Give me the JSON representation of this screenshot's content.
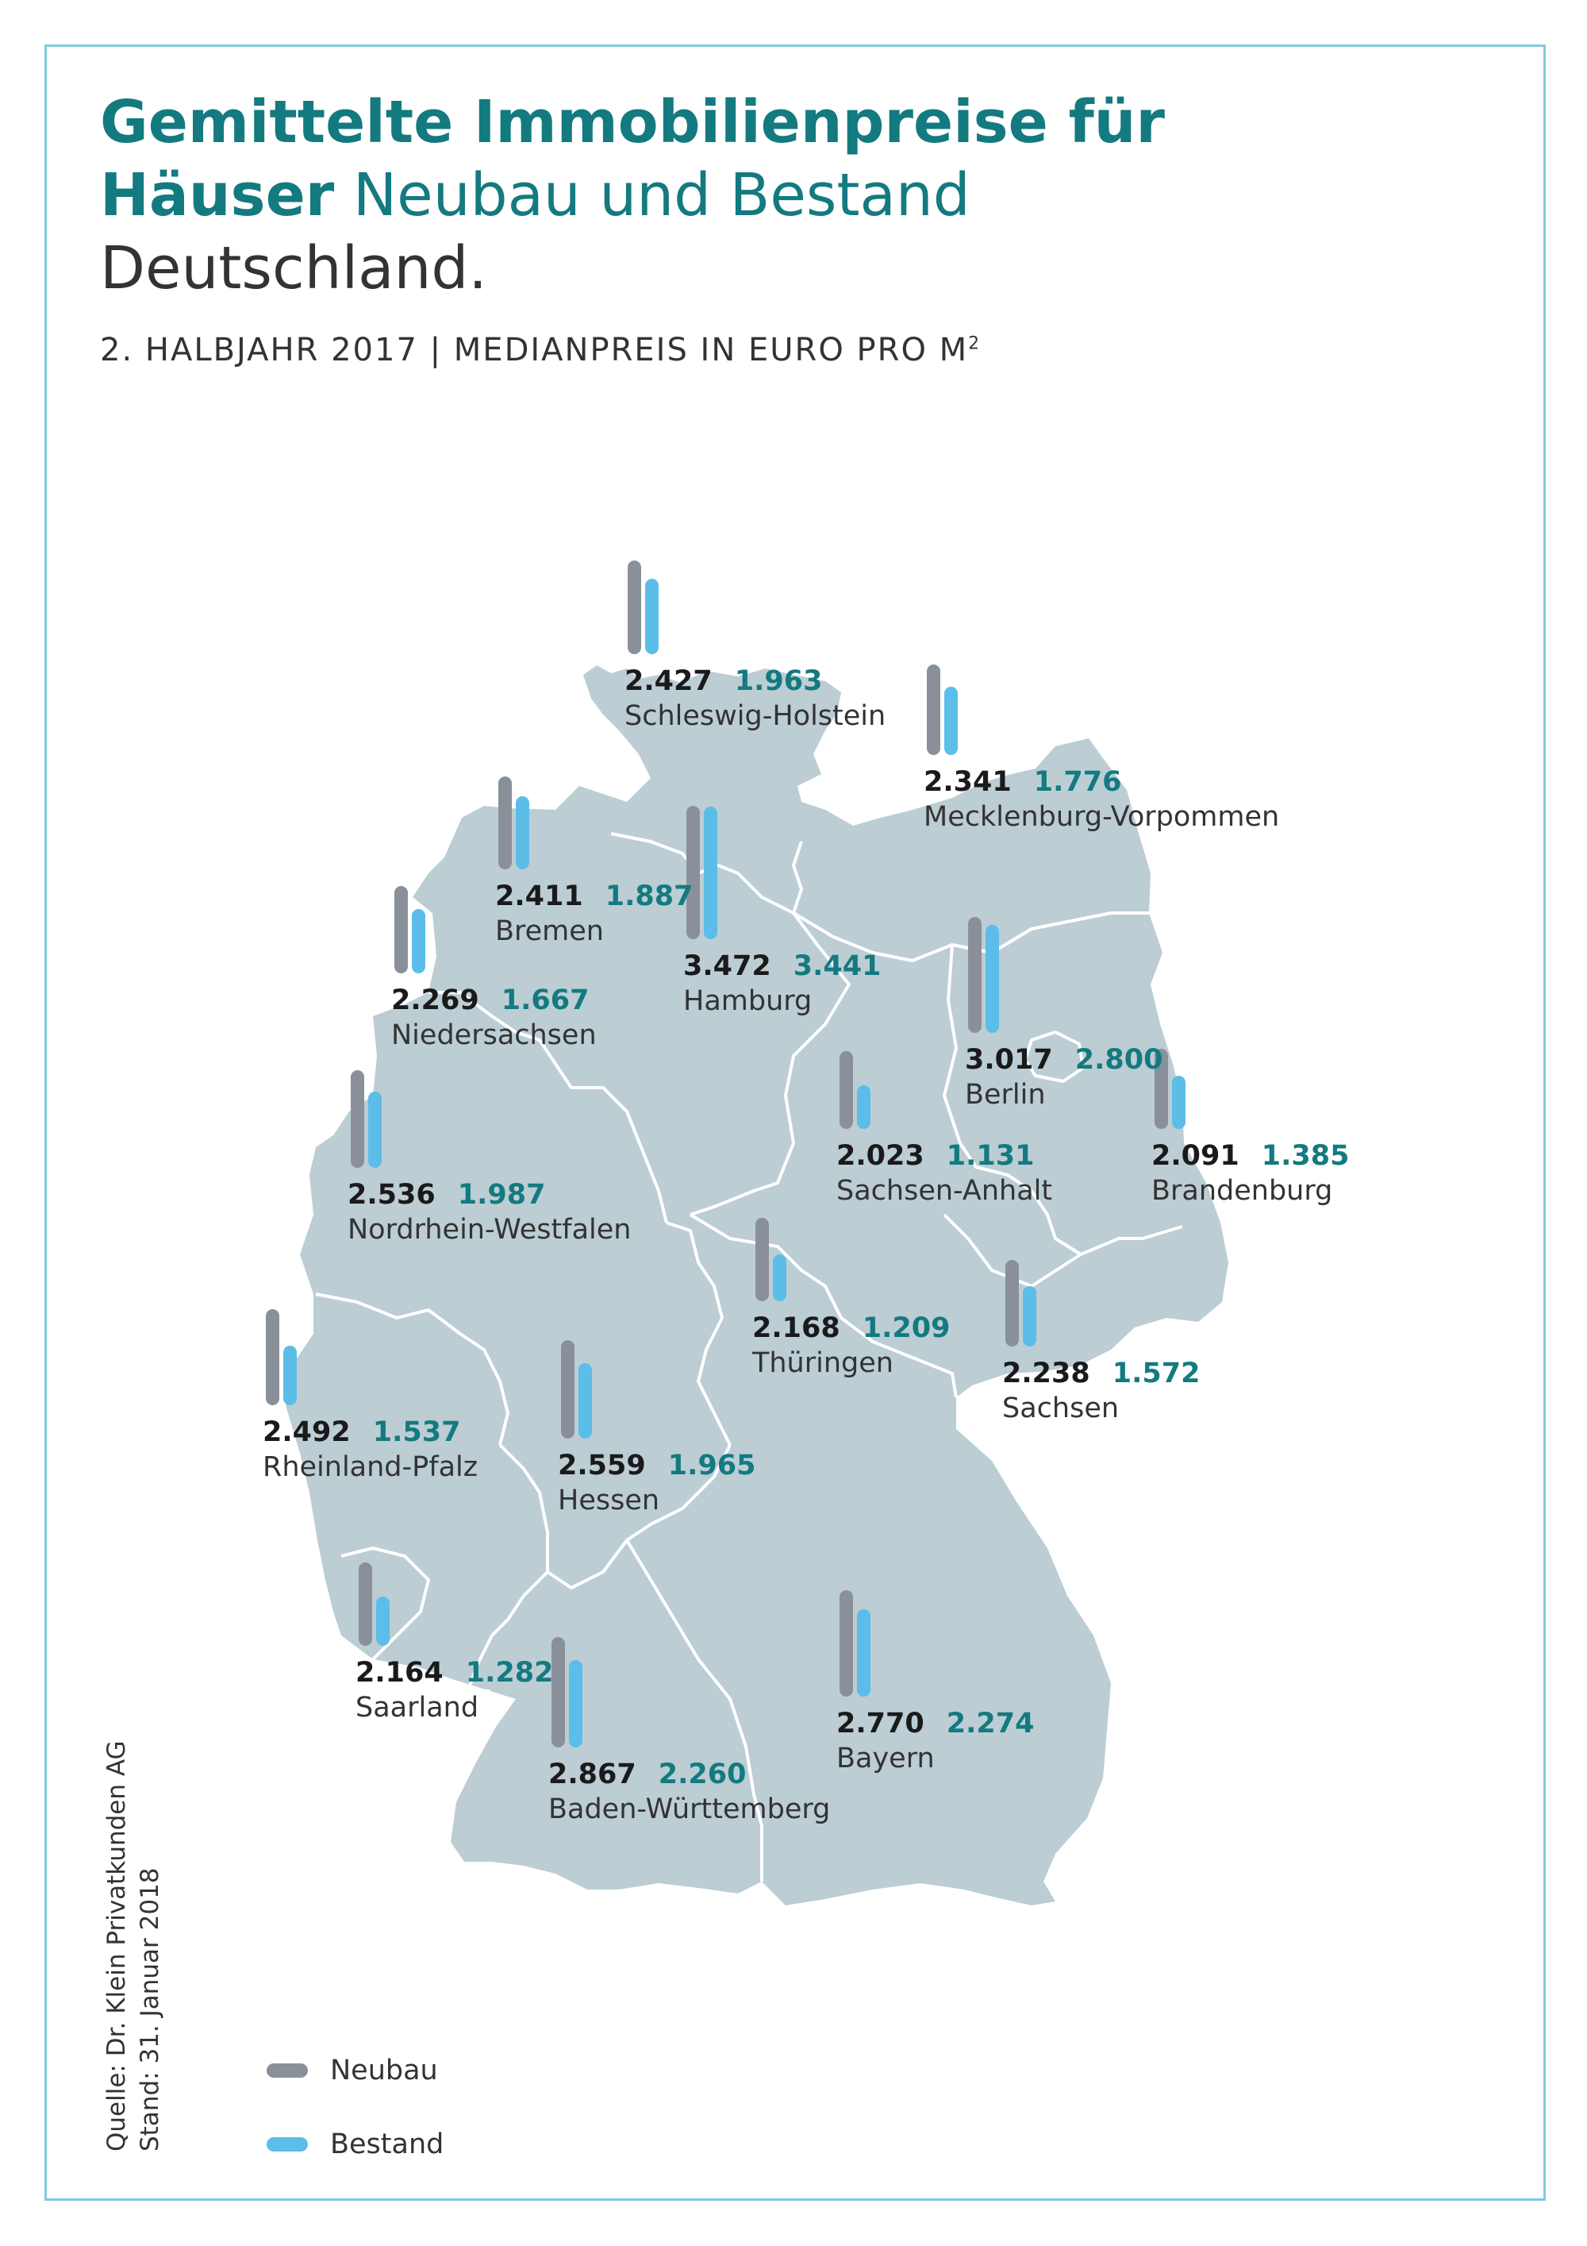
{
  "title": {
    "line1": "Gemittelte Immobilienpreise für",
    "line2_bold": "Häuser",
    "line2_rest": "Neubau und Bestand",
    "line3": "Deutschland."
  },
  "subtitle": "2. HALBJAHR 2017 | MEDIANPREIS IN EURO PRO M",
  "subtitle_sup": "2",
  "colors": {
    "neubau": "#8a9099",
    "bestand": "#5bbde8",
    "map": "#bccdd4",
    "accent": "#137a80",
    "frame": "#7fcbdf"
  },
  "states": [
    {
      "name": "Schleswig-Holstein",
      "neubau": "2.427",
      "bestand": "1.963"
    },
    {
      "name": "Mecklenburg-Vorpommen",
      "neubau": "2.341",
      "bestand": "1.776"
    },
    {
      "name": "Bremen",
      "neubau": "2.411",
      "bestand": "1.887"
    },
    {
      "name": "Hamburg",
      "neubau": "3.472",
      "bestand": "3.441"
    },
    {
      "name": "Niedersachsen",
      "neubau": "2.269",
      "bestand": "1.667"
    },
    {
      "name": "Berlin",
      "neubau": "3.017",
      "bestand": "2.800"
    },
    {
      "name": "Sachsen-Anhalt",
      "neubau": "2.023",
      "bestand": "1.131"
    },
    {
      "name": "Brandenburg",
      "neubau": "2.091",
      "bestand": "1.385"
    },
    {
      "name": "Nordrhein-Westfalen",
      "neubau": "2.536",
      "bestand": "1.987"
    },
    {
      "name": "Thüringen",
      "neubau": "2.168",
      "bestand": "1.209"
    },
    {
      "name": "Sachsen",
      "neubau": "2.238",
      "bestand": "1.572"
    },
    {
      "name": "Rheinland-Pfalz",
      "neubau": "2.492",
      "bestand": "1.537"
    },
    {
      "name": "Hessen",
      "neubau": "2.559",
      "bestand": "1.965"
    },
    {
      "name": "Saarland",
      "neubau": "2.164",
      "bestand": "1.282"
    },
    {
      "name": "Bayern",
      "neubau": "2.770",
      "bestand": "2.274"
    },
    {
      "name": "Baden-Württemberg",
      "neubau": "2.867",
      "bestand": "2.260"
    }
  ],
  "legend": {
    "neubau": "Neubau",
    "bestand": "Bestand"
  },
  "source": {
    "line1": "Quelle: Dr. Klein Privatkunden AG",
    "line2": "Stand: 31. Januar 2018"
  }
}
